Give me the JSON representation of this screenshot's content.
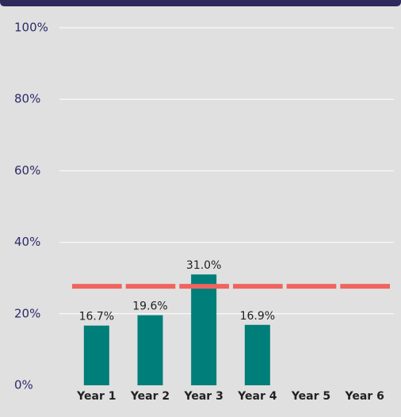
{
  "chart_data": {
    "type": "bar",
    "categories": [
      "Year 1",
      "Year 2",
      "Year 3",
      "Year 4",
      "Year 5",
      "Year 6"
    ],
    "values": [
      16.7,
      19.6,
      31.0,
      16.9,
      null,
      null
    ],
    "value_labels": [
      "16.7%",
      "19.6%",
      "31.0%",
      "16.9%",
      null,
      null
    ],
    "color": "#007e7a",
    "target": 27.7,
    "target_color": "#f0645f",
    "ylim": [
      0,
      100
    ],
    "yticks": [
      {
        "value": 0,
        "label": "0%"
      },
      {
        "value": 20,
        "label": "20%"
      },
      {
        "value": 40,
        "label": "40%"
      },
      {
        "value": 60,
        "label": "60%"
      },
      {
        "value": 80,
        "label": "80%"
      },
      {
        "value": 100,
        "label": "100%"
      }
    ],
    "grid": true
  }
}
